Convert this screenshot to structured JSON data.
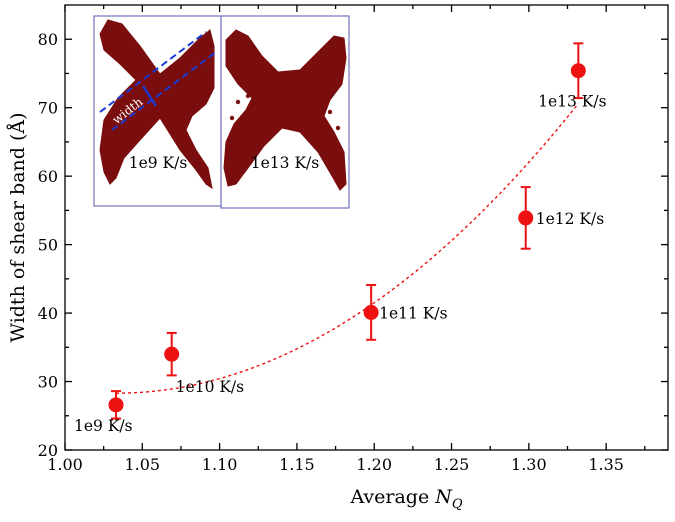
{
  "chart_data": {
    "type": "scatter",
    "xlabel_prefix": "Average ",
    "xlabel_symbol": "N",
    "xlabel_subscript": "Q",
    "ylabel": "Width of shear band (Å)",
    "xlim": [
      1.0,
      1.39
    ],
    "ylim": [
      20,
      85
    ],
    "xticks": [
      "1.00",
      "1.05",
      "1.10",
      "1.15",
      "1.20",
      "1.25",
      "1.30",
      "1.35"
    ],
    "yticks": [
      "20",
      "30",
      "40",
      "50",
      "60",
      "70",
      "80"
    ],
    "series": [
      {
        "x": [
          1.033,
          1.069,
          1.198,
          1.298,
          1.332
        ],
        "y": [
          26.6,
          34.0,
          40.1,
          53.9,
          75.4
        ],
        "err": [
          2.0,
          3.1,
          4.0,
          4.5,
          4.0
        ],
        "labels": [
          "1e9 K/s",
          "1e10 K/s",
          "1e11 K/s",
          "1e12 K/s",
          "1e13 K/s"
        ]
      }
    ],
    "fit_curve": {
      "x_range": [
        1.033,
        1.332
      ],
      "peak_x": 1.033,
      "peak_y": 28.3,
      "end_y": 70.6
    },
    "colors": {
      "marker": "#ee1111",
      "fit": "#ee1111",
      "inset_material": "#7a0d0d",
      "inset_frame": "#6666bb",
      "band_guide": "#1a3ad6"
    },
    "inset": {
      "panels": [
        {
          "label": "1e9 K/s",
          "annotation": "width"
        },
        {
          "label": "1e13 K/s"
        }
      ]
    }
  }
}
